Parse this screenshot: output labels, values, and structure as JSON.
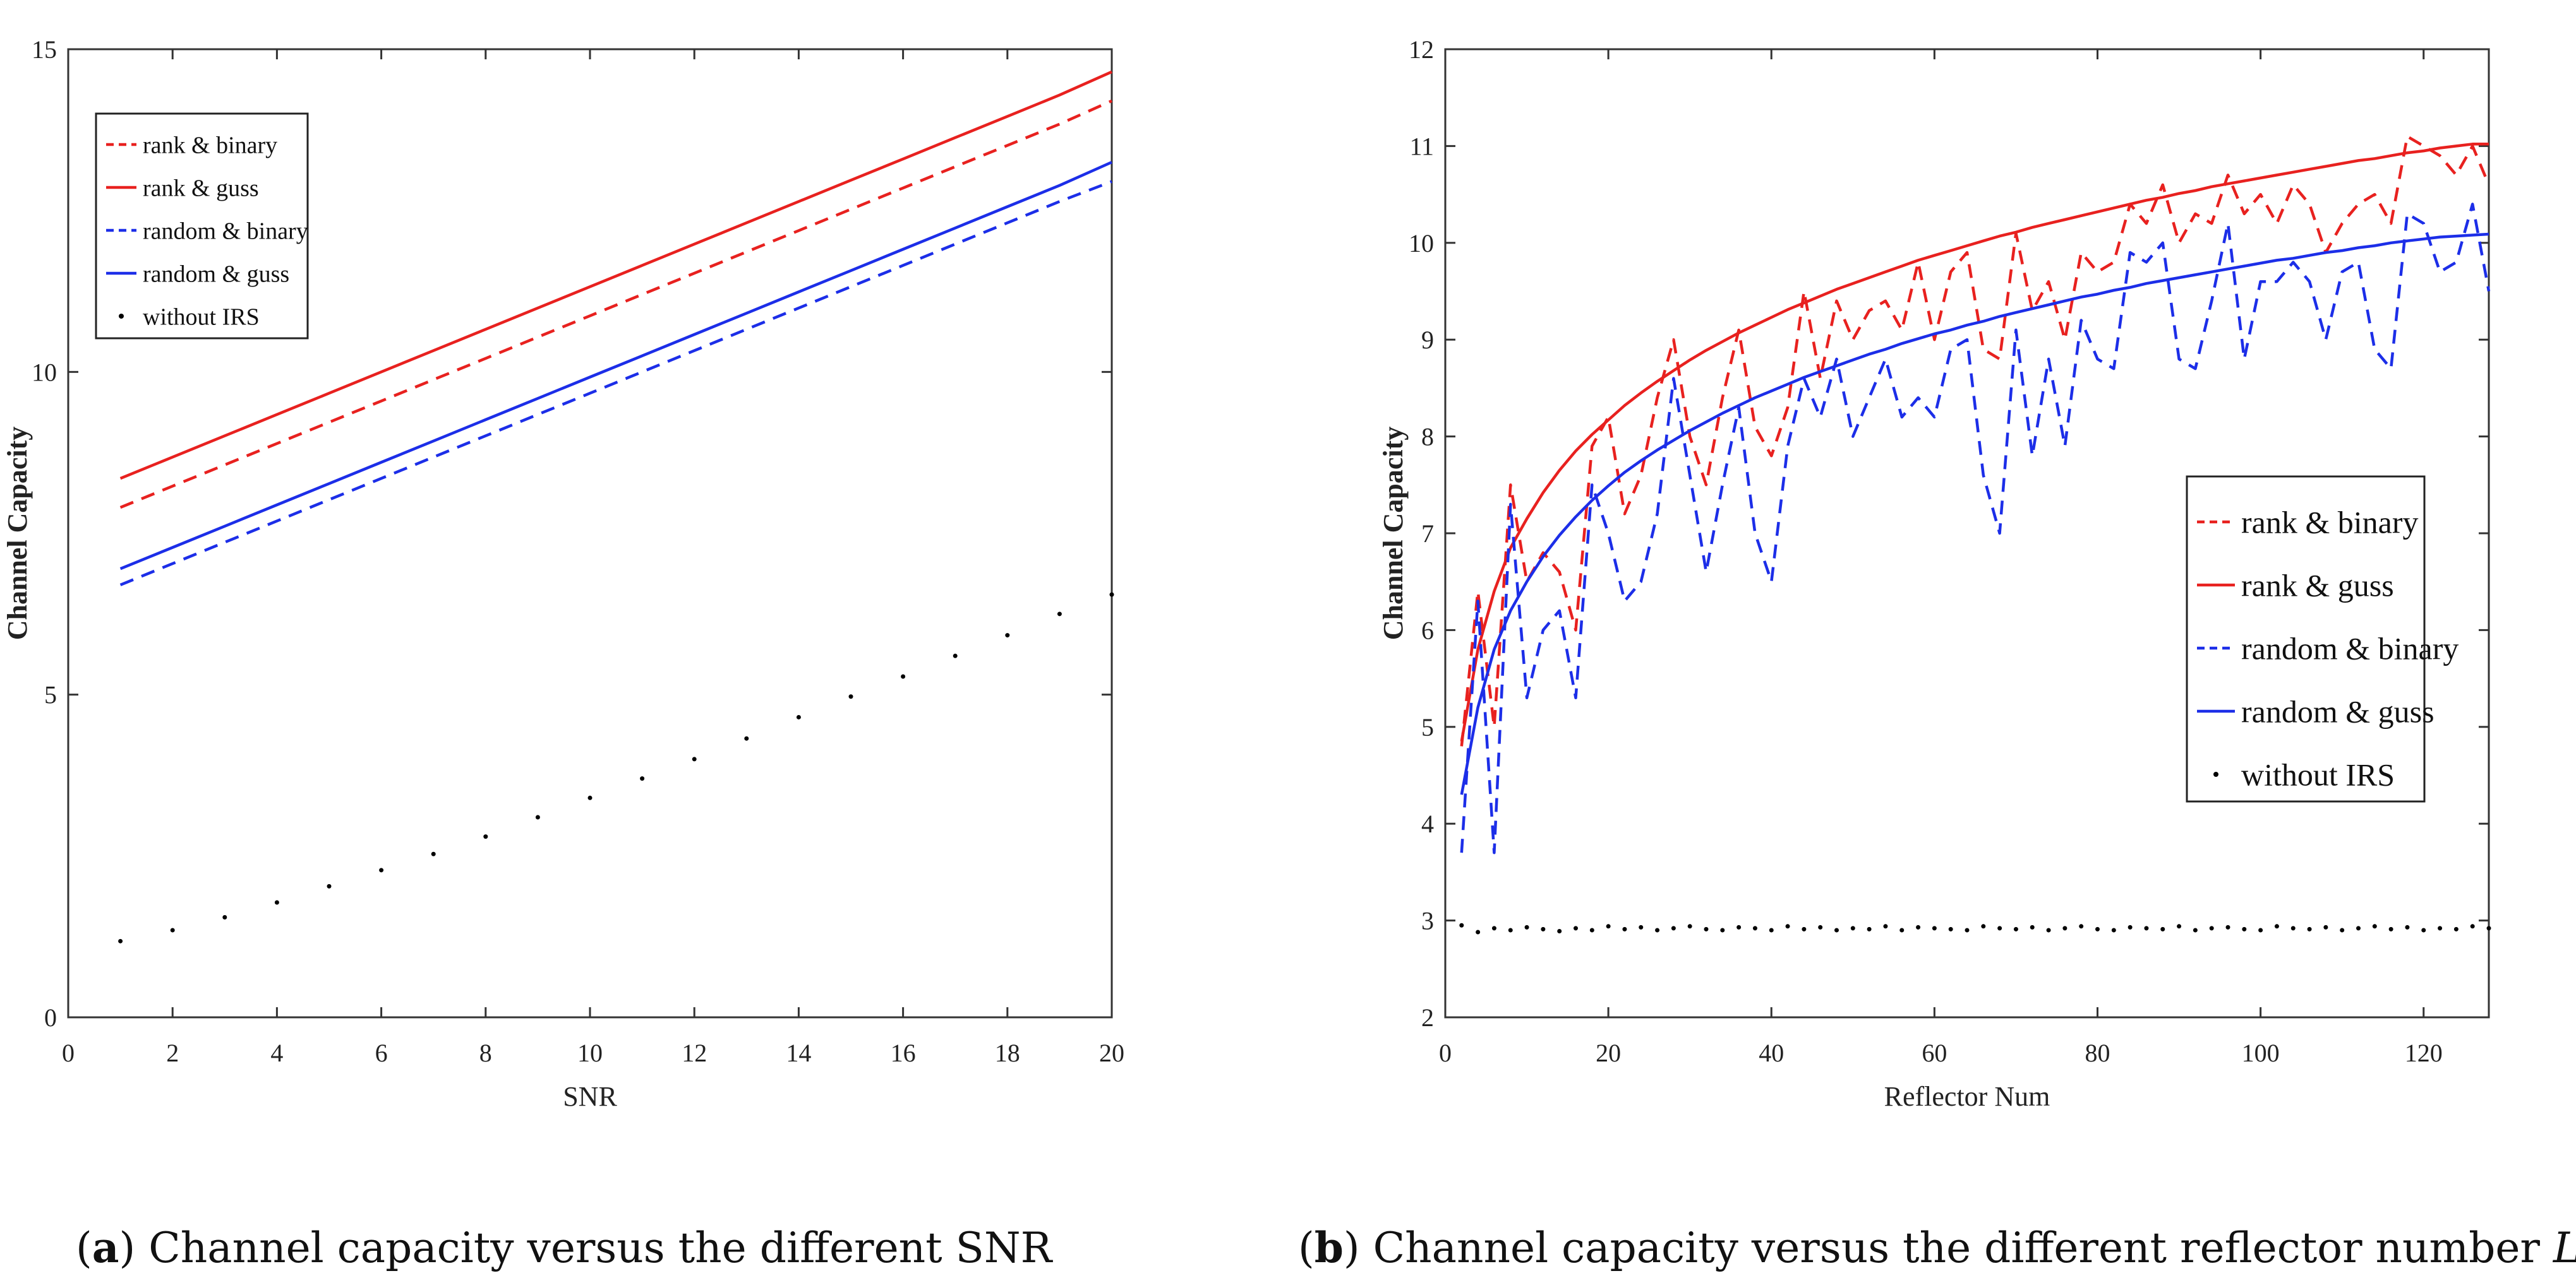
{
  "chart_data": [
    {
      "type": "line",
      "panel": "a",
      "xlabel": "SNR",
      "ylabel": "Channel Capacity",
      "xlim": [
        0,
        20
      ],
      "ylim": [
        0,
        15
      ],
      "xticks": [
        0,
        2,
        4,
        6,
        8,
        10,
        12,
        14,
        16,
        18,
        20
      ],
      "yticks": [
        0,
        5,
        10,
        15
      ],
      "legend_position": "top-left",
      "x": [
        1,
        2,
        3,
        4,
        5,
        6,
        7,
        8,
        9,
        10,
        11,
        12,
        13,
        14,
        15,
        16,
        17,
        18,
        19,
        20
      ],
      "series": [
        {
          "name": "rank & binary",
          "style": "dashed",
          "color": "#e8211f",
          "values": [
            7.9,
            8.23,
            8.56,
            8.89,
            9.22,
            9.55,
            9.88,
            10.21,
            10.54,
            10.87,
            11.2,
            11.53,
            11.86,
            12.19,
            12.52,
            12.85,
            13.18,
            13.51,
            13.84,
            14.2
          ]
        },
        {
          "name": "rank & guss",
          "style": "solid",
          "color": "#e8211f",
          "values": [
            8.35,
            8.68,
            9.01,
            9.34,
            9.67,
            10.0,
            10.33,
            10.66,
            10.99,
            11.32,
            11.65,
            11.98,
            12.31,
            12.64,
            12.97,
            13.3,
            13.63,
            13.96,
            14.29,
            14.65
          ]
        },
        {
          "name": "random & binary",
          "style": "dashed",
          "color": "#1c2ee8",
          "values": [
            6.7,
            7.03,
            7.36,
            7.69,
            8.02,
            8.35,
            8.68,
            9.01,
            9.34,
            9.67,
            10.0,
            10.33,
            10.66,
            10.99,
            11.32,
            11.65,
            11.98,
            12.31,
            12.64,
            12.95
          ]
        },
        {
          "name": "random & guss",
          "style": "solid",
          "color": "#1c2ee8",
          "values": [
            6.95,
            7.28,
            7.61,
            7.94,
            8.27,
            8.6,
            8.93,
            9.26,
            9.59,
            9.92,
            10.25,
            10.58,
            10.91,
            11.24,
            11.57,
            11.9,
            12.23,
            12.56,
            12.89,
            13.25
          ]
        },
        {
          "name": "without IRS",
          "style": "dot",
          "color": "#000000",
          "values": [
            1.18,
            1.35,
            1.55,
            1.78,
            2.03,
            2.28,
            2.53,
            2.8,
            3.1,
            3.4,
            3.7,
            4.0,
            4.32,
            4.65,
            4.97,
            5.28,
            5.6,
            5.92,
            6.25,
            6.55
          ]
        }
      ]
    },
    {
      "type": "line",
      "panel": "b",
      "xlabel": "Reflector Num",
      "ylabel": "Channel Capacity",
      "xlim": [
        0,
        128
      ],
      "ylim": [
        2,
        12
      ],
      "xticks": [
        0,
        20,
        40,
        60,
        80,
        100,
        120
      ],
      "yticks": [
        2,
        3,
        4,
        5,
        6,
        7,
        8,
        9,
        10,
        11,
        12
      ],
      "legend_position": "right",
      "x": [
        2,
        4,
        6,
        8,
        10,
        12,
        14,
        16,
        18,
        20,
        22,
        24,
        26,
        28,
        30,
        32,
        34,
        36,
        38,
        40,
        42,
        44,
        46,
        48,
        50,
        52,
        54,
        56,
        58,
        60,
        62,
        64,
        66,
        68,
        70,
        72,
        74,
        76,
        78,
        80,
        82,
        84,
        86,
        88,
        90,
        92,
        94,
        96,
        98,
        100,
        102,
        104,
        106,
        108,
        110,
        112,
        114,
        116,
        118,
        120,
        122,
        124,
        126,
        128
      ],
      "series": [
        {
          "name": "rank & binary",
          "style": "dashed",
          "color": "#e8211f",
          "values": [
            4.8,
            6.4,
            5.0,
            7.5,
            6.5,
            6.8,
            6.6,
            6.0,
            7.9,
            8.2,
            7.2,
            7.6,
            8.4,
            9.0,
            8.0,
            7.5,
            8.4,
            9.1,
            8.1,
            7.8,
            8.3,
            9.5,
            8.6,
            9.4,
            9.0,
            9.3,
            9.4,
            9.1,
            9.8,
            9.0,
            9.7,
            9.9,
            8.9,
            8.8,
            10.1,
            9.3,
            9.6,
            9.0,
            9.9,
            9.7,
            9.8,
            10.4,
            10.2,
            10.6,
            10.0,
            10.3,
            10.2,
            10.7,
            10.3,
            10.5,
            10.2,
            10.6,
            10.4,
            9.9,
            10.2,
            10.4,
            10.5,
            10.2,
            11.1,
            11.0,
            10.9,
            10.7,
            11.0,
            10.6
          ]
        },
        {
          "name": "rank & guss",
          "style": "solid",
          "color": "#e8211f",
          "values": [
            4.85,
            5.8,
            6.4,
            6.85,
            7.15,
            7.42,
            7.65,
            7.85,
            8.02,
            8.17,
            8.32,
            8.45,
            8.57,
            8.68,
            8.79,
            8.89,
            8.98,
            9.07,
            9.15,
            9.23,
            9.31,
            9.38,
            9.45,
            9.52,
            9.58,
            9.64,
            9.7,
            9.76,
            9.82,
            9.87,
            9.92,
            9.97,
            10.02,
            10.07,
            10.11,
            10.16,
            10.2,
            10.24,
            10.28,
            10.32,
            10.36,
            10.4,
            10.44,
            10.47,
            10.51,
            10.54,
            10.58,
            10.61,
            10.64,
            10.67,
            10.7,
            10.73,
            10.76,
            10.79,
            10.82,
            10.85,
            10.87,
            10.9,
            10.93,
            10.95,
            10.98,
            11.0,
            11.02,
            11.02
          ]
        },
        {
          "name": "random & binary",
          "style": "dashed",
          "color": "#1c2ee8",
          "values": [
            3.7,
            6.3,
            3.7,
            7.3,
            5.3,
            6.0,
            6.2,
            5.3,
            7.5,
            7.0,
            6.3,
            6.5,
            7.2,
            8.6,
            7.6,
            6.6,
            7.5,
            8.3,
            7.0,
            6.5,
            7.9,
            8.6,
            8.2,
            8.8,
            8.0,
            8.4,
            8.8,
            8.2,
            8.4,
            8.2,
            8.9,
            9.0,
            7.6,
            7.0,
            9.1,
            7.8,
            8.8,
            7.9,
            9.2,
            8.8,
            8.7,
            9.9,
            9.8,
            10.0,
            8.8,
            8.7,
            9.4,
            10.2,
            8.8,
            9.6,
            9.6,
            9.8,
            9.6,
            9.0,
            9.7,
            9.8,
            8.9,
            8.7,
            10.3,
            10.2,
            9.7,
            9.8,
            10.4,
            9.5
          ]
        },
        {
          "name": "random & guss",
          "style": "solid",
          "color": "#1c2ee8",
          "values": [
            4.3,
            5.2,
            5.8,
            6.2,
            6.5,
            6.76,
            6.98,
            7.17,
            7.34,
            7.49,
            7.63,
            7.75,
            7.86,
            7.96,
            8.06,
            8.15,
            8.24,
            8.32,
            8.4,
            8.47,
            8.54,
            8.61,
            8.67,
            8.73,
            8.79,
            8.85,
            8.9,
            8.96,
            9.01,
            9.06,
            9.1,
            9.15,
            9.19,
            9.24,
            9.28,
            9.32,
            9.36,
            9.4,
            9.44,
            9.47,
            9.51,
            9.54,
            9.58,
            9.61,
            9.64,
            9.67,
            9.7,
            9.73,
            9.76,
            9.79,
            9.82,
            9.84,
            9.87,
            9.9,
            9.92,
            9.95,
            9.97,
            10.0,
            10.02,
            10.04,
            10.06,
            10.07,
            10.08,
            10.09
          ]
        },
        {
          "name": "without IRS",
          "style": "dot",
          "color": "#000000",
          "values": [
            2.95,
            2.88,
            2.92,
            2.9,
            2.93,
            2.91,
            2.89,
            2.92,
            2.9,
            2.94,
            2.91,
            2.93,
            2.9,
            2.92,
            2.94,
            2.91,
            2.9,
            2.93,
            2.92,
            2.9,
            2.94,
            2.91,
            2.93,
            2.9,
            2.92,
            2.91,
            2.94,
            2.9,
            2.93,
            2.92,
            2.91,
            2.9,
            2.94,
            2.92,
            2.91,
            2.93,
            2.9,
            2.92,
            2.94,
            2.91,
            2.9,
            2.93,
            2.92,
            2.91,
            2.94,
            2.9,
            2.92,
            2.93,
            2.91,
            2.9,
            2.94,
            2.92,
            2.91,
            2.93,
            2.9,
            2.92,
            2.94,
            2.91,
            2.93,
            2.9,
            2.92,
            2.91,
            2.94,
            2.92
          ]
        }
      ]
    }
  ],
  "captions": [
    {
      "letter": "a",
      "text": "Channel capacity versus the different SNR"
    },
    {
      "letter": "b",
      "text": "Channel capacity versus the different reflector number",
      "var": "L"
    }
  ]
}
